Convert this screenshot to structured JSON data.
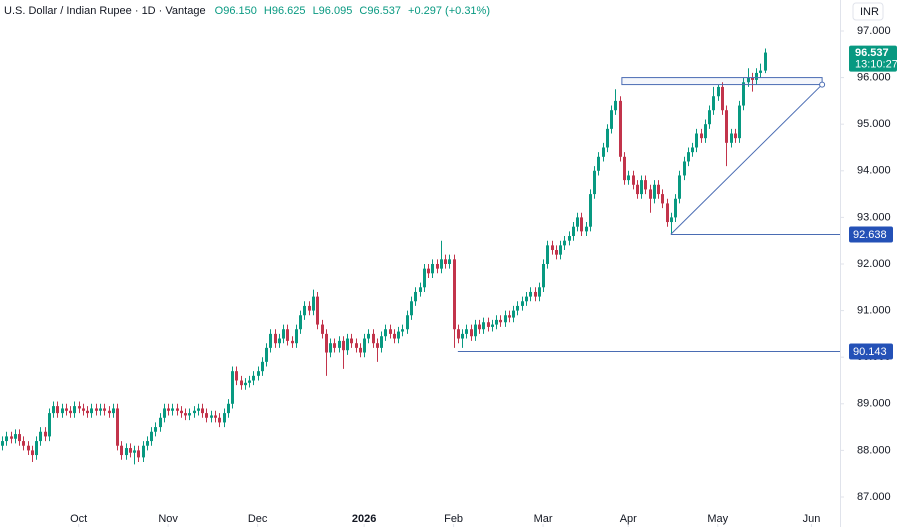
{
  "header": {
    "title": "U.S. Dollar / Indian Rupee · 1D · Vantage",
    "ohlc": [
      "O96.150",
      "H96.625",
      "L96.095",
      "C96.537"
    ],
    "change": "+0.297 (+0.31%)",
    "currency": "INR",
    "countdown": "13:10:27"
  },
  "chart_data": {
    "type": "candlestick",
    "up_color": "#089981",
    "down_color": "#c2344b",
    "line_color": "#4a6cb3",
    "ylim": [
      86.356,
      97.665
    ],
    "yticks": [
      {
        "value": 87,
        "label": "87.000"
      },
      {
        "value": 88,
        "label": "88.000"
      },
      {
        "value": 89,
        "label": "89.000"
      },
      {
        "value": 90,
        "label": "90.000"
      },
      {
        "value": 91,
        "label": "91.000"
      },
      {
        "value": 92,
        "label": "92.000"
      },
      {
        "value": 93,
        "label": "93.000"
      },
      {
        "value": 94,
        "label": "94.000"
      },
      {
        "value": 95,
        "label": "95.000"
      },
      {
        "value": 96,
        "label": "96.000"
      },
      {
        "value": 97,
        "label": "97.000"
      }
    ],
    "xlim": [
      -0.47,
      196.7
    ],
    "xticks": [
      {
        "value": 18,
        "label": "Oct"
      },
      {
        "value": 39,
        "label": "Nov"
      },
      {
        "value": 60,
        "label": "Dec"
      },
      {
        "value": 85,
        "label": "2026"
      },
      {
        "value": 106,
        "label": "Feb"
      },
      {
        "value": 127,
        "label": "Mar"
      },
      {
        "value": 147,
        "label": "Apr"
      },
      {
        "value": 168,
        "label": "May"
      },
      {
        "value": 190,
        "label": "Jun"
      }
    ],
    "open": [
      88.1,
      88.2,
      88.3,
      88.25,
      88.35,
      88.2,
      88.1,
      88.0,
      87.9,
      88.2,
      88.4,
      88.3,
      88.8,
      88.95,
      88.8,
      88.9,
      88.85,
      88.8,
      88.95,
      88.9,
      88.85,
      88.8,
      88.9,
      88.85,
      88.9,
      88.85,
      88.8,
      88.9,
      88.1,
      87.9,
      88.05,
      87.95,
      88.0,
      87.85,
      88.1,
      88.2,
      88.4,
      88.5,
      88.7,
      88.9,
      88.85,
      88.9,
      88.85,
      88.8,
      88.75,
      88.8,
      88.85,
      88.9,
      88.8,
      88.7,
      88.75,
      88.7,
      88.6,
      88.8,
      89.0,
      89.7,
      89.5,
      89.4,
      89.45,
      89.5,
      89.6,
      89.7,
      89.9,
      90.2,
      90.5,
      90.3,
      90.4,
      90.6,
      90.35,
      90.3,
      90.6,
      90.9,
      91.1,
      91.0,
      91.3,
      90.7,
      90.5,
      90.1,
      90.3,
      90.2,
      90.35,
      90.15,
      90.4,
      90.3,
      90.2,
      90.1,
      90.4,
      90.5,
      90.3,
      90.2,
      90.45,
      90.6,
      90.5,
      90.4,
      90.55,
      90.6,
      90.9,
      91.2,
      91.4,
      91.5,
      91.9,
      91.8,
      92.0,
      91.9,
      92.1,
      92.0,
      92.1,
      90.6,
      90.4,
      90.5,
      90.6,
      90.45,
      90.7,
      90.6,
      90.75,
      90.65,
      90.7,
      90.8,
      90.75,
      90.9,
      90.85,
      91.0,
      91.1,
      91.2,
      91.3,
      91.4,
      91.3,
      91.5,
      92.0,
      92.4,
      92.3,
      92.2,
      92.4,
      92.5,
      92.6,
      92.8,
      93.0,
      92.7,
      92.8,
      93.5,
      94.0,
      94.3,
      94.5,
      94.9,
      95.3,
      95.5,
      94.3,
      93.8,
      93.9,
      93.7,
      93.5,
      93.8,
      93.6,
      93.4,
      93.7,
      93.5,
      93.3,
      92.9,
      93.0,
      93.4,
      93.9,
      94.2,
      94.4,
      94.5,
      94.8,
      94.7,
      95.0,
      95.3,
      95.6,
      95.8,
      95.3,
      94.6,
      94.8,
      94.7,
      95.4,
      95.9,
      96.0,
      95.95,
      96.1,
      96.15
    ],
    "high": [
      88.3,
      88.4,
      88.4,
      88.45,
      88.45,
      88.3,
      88.2,
      88.1,
      88.3,
      88.5,
      88.5,
      88.9,
      89.05,
      89.05,
      89.0,
      89.0,
      88.95,
      89.05,
      89.05,
      89.0,
      88.95,
      89.0,
      89.0,
      89.0,
      89.0,
      88.95,
      89.0,
      89.0,
      88.2,
      88.15,
      88.15,
      88.1,
      88.1,
      88.2,
      88.3,
      88.5,
      88.6,
      88.8,
      89.0,
      89.0,
      89.0,
      89.0,
      88.95,
      88.9,
      88.9,
      88.95,
      89.0,
      89.0,
      88.9,
      88.85,
      88.85,
      88.8,
      88.9,
      89.1,
      89.8,
      89.8,
      89.6,
      89.55,
      89.6,
      89.7,
      89.8,
      90.0,
      90.3,
      90.6,
      90.6,
      90.5,
      90.7,
      90.7,
      90.45,
      90.7,
      91.0,
      91.2,
      91.2,
      91.45,
      91.4,
      90.8,
      90.6,
      90.4,
      90.4,
      90.45,
      90.45,
      90.5,
      90.5,
      90.4,
      90.3,
      90.5,
      90.6,
      90.6,
      90.4,
      90.55,
      90.7,
      90.7,
      90.6,
      90.65,
      90.7,
      91.0,
      91.3,
      91.5,
      91.6,
      92.0,
      92.0,
      92.1,
      92.1,
      92.5,
      92.2,
      92.2,
      92.2,
      90.7,
      90.6,
      90.7,
      90.7,
      90.8,
      90.8,
      90.85,
      90.85,
      90.8,
      90.9,
      90.9,
      91.0,
      91.0,
      91.1,
      91.2,
      91.3,
      91.4,
      91.5,
      91.5,
      91.6,
      92.1,
      92.5,
      92.5,
      92.4,
      92.5,
      92.6,
      92.7,
      92.9,
      93.1,
      93.1,
      92.9,
      93.6,
      94.1,
      94.4,
      94.6,
      95.0,
      95.4,
      95.75,
      95.6,
      94.4,
      94.0,
      94.0,
      93.8,
      93.9,
      93.9,
      93.7,
      93.8,
      93.8,
      93.6,
      93.4,
      93.1,
      93.5,
      94.0,
      94.3,
      94.5,
      94.6,
      94.9,
      94.9,
      95.1,
      95.4,
      95.8,
      95.85,
      95.9,
      95.4,
      94.9,
      94.9,
      95.5,
      96.0,
      96.2,
      96.1,
      96.2,
      96.3,
      96.625
    ],
    "low": [
      88.0,
      88.1,
      88.15,
      88.15,
      88.1,
      88.0,
      87.9,
      87.75,
      87.8,
      88.1,
      88.2,
      88.2,
      88.7,
      88.7,
      88.7,
      88.75,
      88.7,
      88.7,
      88.8,
      88.75,
      88.7,
      88.7,
      88.75,
      88.75,
      88.75,
      88.7,
      88.7,
      88.0,
      87.8,
      87.8,
      87.85,
      87.7,
      87.75,
      87.75,
      88.0,
      88.1,
      88.3,
      88.4,
      88.6,
      88.75,
      88.75,
      88.75,
      88.7,
      88.65,
      88.65,
      88.7,
      88.75,
      88.7,
      88.6,
      88.6,
      88.6,
      88.5,
      88.5,
      88.7,
      88.9,
      89.4,
      89.3,
      89.3,
      89.35,
      89.4,
      89.5,
      89.6,
      89.8,
      90.1,
      90.2,
      90.2,
      90.3,
      90.25,
      90.2,
      90.2,
      90.5,
      90.8,
      90.9,
      90.9,
      90.6,
      90.4,
      89.6,
      90.0,
      90.1,
      90.1,
      89.75,
      90.05,
      90.2,
      90.1,
      90.0,
      90.0,
      90.3,
      90.2,
      89.9,
      90.1,
      90.35,
      90.4,
      90.3,
      90.3,
      90.45,
      90.5,
      90.8,
      91.1,
      91.3,
      91.4,
      91.7,
      91.7,
      91.8,
      91.8,
      91.9,
      91.9,
      90.2,
      90.3,
      90.2,
      90.4,
      90.35,
      90.35,
      90.5,
      90.5,
      90.55,
      90.55,
      90.6,
      90.65,
      90.65,
      90.75,
      90.75,
      90.9,
      91.0,
      91.1,
      91.2,
      91.2,
      91.2,
      91.4,
      91.9,
      92.2,
      92.1,
      92.1,
      92.3,
      92.4,
      92.5,
      92.7,
      92.6,
      92.6,
      92.7,
      93.4,
      93.9,
      94.2,
      94.4,
      94.8,
      95.2,
      94.2,
      93.7,
      93.7,
      93.6,
      93.4,
      93.4,
      93.5,
      93.1,
      93.3,
      93.4,
      93.2,
      92.8,
      92.638,
      92.9,
      93.3,
      93.8,
      94.1,
      94.3,
      94.4,
      94.6,
      94.6,
      94.9,
      95.2,
      95.5,
      95.2,
      94.1,
      94.5,
      94.6,
      94.6,
      95.3,
      95.8,
      95.7,
      95.85,
      96.0,
      96.095
    ],
    "close": [
      88.2,
      88.3,
      88.25,
      88.35,
      88.2,
      88.1,
      88.0,
      87.9,
      88.2,
      88.4,
      88.3,
      88.8,
      88.95,
      88.8,
      88.9,
      88.85,
      88.8,
      88.95,
      88.9,
      88.85,
      88.8,
      88.9,
      88.85,
      88.9,
      88.85,
      88.8,
      88.9,
      88.1,
      87.9,
      88.05,
      87.95,
      88.0,
      87.85,
      88.1,
      88.2,
      88.4,
      88.5,
      88.7,
      88.9,
      88.85,
      88.9,
      88.85,
      88.8,
      88.75,
      88.8,
      88.85,
      88.9,
      88.8,
      88.7,
      88.75,
      88.7,
      88.6,
      88.8,
      89.0,
      89.7,
      89.5,
      89.4,
      89.45,
      89.5,
      89.6,
      89.7,
      89.9,
      90.2,
      90.5,
      90.3,
      90.4,
      90.6,
      90.35,
      90.3,
      90.6,
      90.9,
      91.1,
      91.0,
      91.3,
      90.7,
      90.5,
      90.1,
      90.3,
      90.2,
      90.35,
      90.15,
      90.4,
      90.3,
      90.2,
      90.1,
      90.4,
      90.5,
      90.3,
      90.2,
      90.45,
      90.6,
      90.5,
      90.4,
      90.55,
      90.6,
      90.9,
      91.2,
      91.4,
      91.5,
      91.9,
      91.8,
      92.0,
      91.9,
      92.1,
      92.0,
      92.1,
      90.6,
      90.4,
      90.5,
      90.6,
      90.45,
      90.7,
      90.6,
      90.75,
      90.65,
      90.7,
      90.8,
      90.75,
      90.9,
      90.85,
      91.0,
      91.1,
      91.2,
      91.3,
      91.4,
      91.3,
      91.5,
      92.0,
      92.4,
      92.3,
      92.2,
      92.4,
      92.5,
      92.6,
      92.8,
      93.0,
      92.7,
      92.8,
      93.5,
      94.0,
      94.3,
      94.5,
      94.9,
      95.3,
      95.5,
      94.3,
      93.8,
      93.9,
      93.7,
      93.5,
      93.8,
      93.6,
      93.4,
      93.7,
      93.5,
      93.3,
      92.9,
      93.0,
      93.4,
      93.9,
      94.2,
      94.4,
      94.5,
      94.8,
      94.7,
      95.0,
      95.3,
      95.6,
      95.8,
      95.3,
      94.6,
      94.8,
      94.7,
      95.4,
      95.9,
      96.0,
      95.95,
      96.1,
      96.15,
      96.537
    ],
    "levels": [
      92.638,
      90.143
    ],
    "box": [
      95.85,
      96.0
    ],
    "trendline": [
      92.638,
      95.85
    ]
  }
}
